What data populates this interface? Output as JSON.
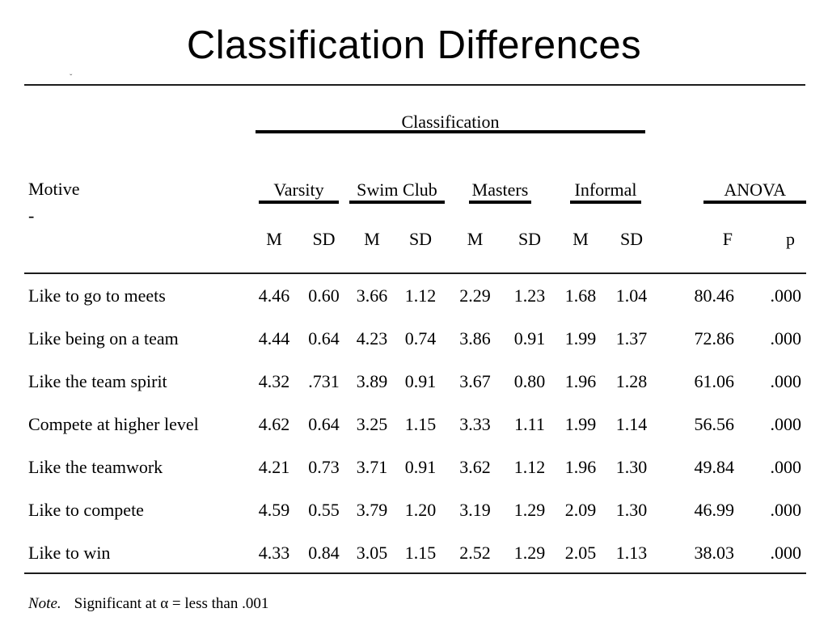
{
  "slide": {
    "title": "Classification Differences"
  },
  "colors": {
    "background": "#ffffff",
    "text": "#000000",
    "rule": "#1c1c1c"
  },
  "decor": {
    "stray_mark": "ˇ"
  },
  "table": {
    "span_header": "Classification",
    "motive_label": "Motive",
    "motive_dash": "-",
    "groups": [
      {
        "label": "Varsity"
      },
      {
        "label": "Swim Club"
      },
      {
        "label": "Masters"
      },
      {
        "label": "Informal"
      },
      {
        "label": "ANOVA"
      }
    ],
    "subheaders": [
      "M",
      "SD",
      "M",
      "SD",
      "M",
      "SD",
      "M",
      "SD",
      "F",
      "p"
    ],
    "rows": [
      {
        "motive": "Like to go to meets",
        "cells": [
          "4.46",
          "0.60",
          "3.66",
          "1.12",
          "2.29",
          "1.23",
          "1.68",
          "1.04",
          "80.46",
          ".000"
        ]
      },
      {
        "motive": "Like being on a team",
        "cells": [
          "4.44",
          "0.64",
          "4.23",
          "0.74",
          "3.86",
          "0.91",
          "1.99",
          "1.37",
          "72.86",
          ".000"
        ]
      },
      {
        "motive": "Like the team spirit",
        "cells": [
          "4.32",
          ".731",
          "3.89",
          "0.91",
          "3.67",
          "0.80",
          "1.96",
          "1.28",
          "61.06",
          ".000"
        ]
      },
      {
        "motive": "Compete at higher level",
        "cells": [
          "4.62",
          "0.64",
          "3.25",
          "1.15",
          "3.33",
          "1.11",
          "1.99",
          "1.14",
          "56.56",
          ".000"
        ]
      },
      {
        "motive": "Like the teamwork",
        "cells": [
          "4.21",
          "0.73",
          "3.71",
          "0.91",
          "3.62",
          "1.12",
          "1.96",
          "1.30",
          "49.84",
          ".000"
        ]
      },
      {
        "motive": "Like to compete",
        "cells": [
          "4.59",
          "0.55",
          "3.79",
          "1.20",
          "3.19",
          "1.29",
          "2.09",
          "1.30",
          "46.99",
          ".000"
        ]
      },
      {
        "motive": "Like to win",
        "cells": [
          "4.33",
          "0.84",
          "3.05",
          "1.15",
          "2.52",
          "1.29",
          "2.05",
          "1.13",
          "38.03",
          ".000"
        ]
      }
    ]
  },
  "note": {
    "prefix": "Note.",
    "text": "Significant at α = less than .001"
  }
}
